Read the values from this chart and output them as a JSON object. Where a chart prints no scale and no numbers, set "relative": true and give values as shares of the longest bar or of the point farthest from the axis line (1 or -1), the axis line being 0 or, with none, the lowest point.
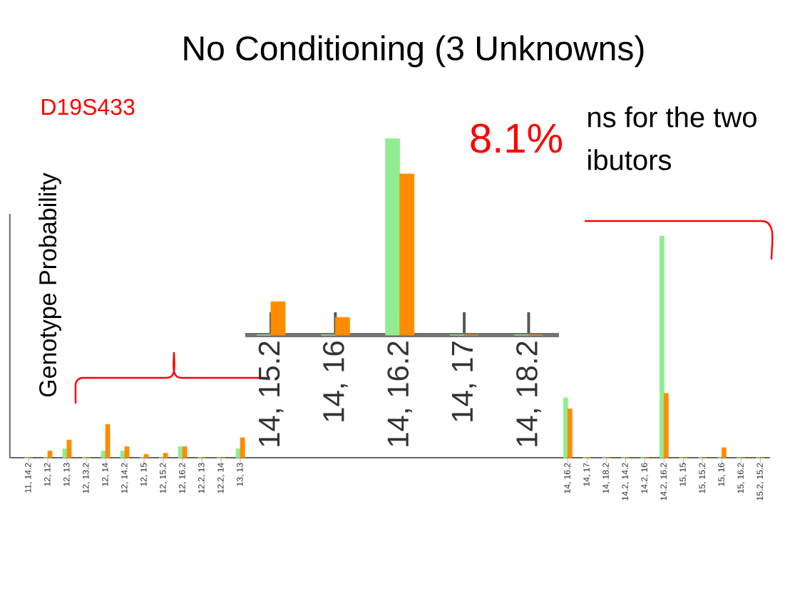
{
  "chart_data": [
    {
      "type": "bar",
      "title": "No Conditioning (3 Unknowns)",
      "ylabel": "Genotype Probability",
      "relative": true,
      "categories": [
        "11, 14.2",
        "12, 12",
        "12, 13",
        "12, 13.2",
        "12, 14",
        "12, 14.2",
        "12, 15",
        "12, 15.2",
        "12, 16.2",
        "12.2, 13",
        "12.2, 14",
        "13, 13",
        null,
        null,
        null,
        null,
        null,
        null,
        null,
        null,
        null,
        null,
        null,
        null,
        null,
        null,
        null,
        null,
        "14, 16.2",
        "14, 17",
        "14, 18.2",
        "14.2, 14.2",
        "14.2, 16",
        "14.2, 16.2",
        "15, 15",
        "15, 15.2",
        "15, 16",
        "15, 16.2",
        "15.2, 15.2"
      ],
      "series": [
        {
          "color": "#90ee90",
          "values": [
            0,
            0,
            0.04,
            0,
            0.03,
            0.03,
            0,
            0,
            0.05,
            0,
            0,
            0.04,
            null,
            null,
            null,
            null,
            null,
            null,
            null,
            null,
            null,
            null,
            null,
            null,
            null,
            null,
            null,
            null,
            0.27,
            0,
            0,
            0,
            0,
            1,
            0,
            0,
            0,
            0,
            0
          ]
        },
        {
          "color": "#ff8c00",
          "values": [
            0,
            0.03,
            0.08,
            0,
            0.15,
            0.05,
            0.015,
            0.02,
            0.05,
            0,
            0,
            0.09,
            null,
            null,
            null,
            null,
            null,
            null,
            null,
            null,
            null,
            null,
            null,
            null,
            null,
            null,
            null,
            null,
            0.22,
            0,
            0,
            0,
            0,
            0.29,
            0,
            0,
            0.045,
            0,
            0
          ]
        }
      ],
      "annotations": [
        "D19S433",
        "ns for the two",
        "ibutors"
      ]
    },
    {
      "type": "bar",
      "relative": true,
      "categories": [
        "14, 15.2",
        "14, 16",
        "14, 16.2",
        "14, 17",
        "14, 18.2"
      ],
      "series": [
        {
          "color": "#90ee90",
          "values": [
            0,
            0,
            1,
            0,
            0
          ]
        },
        {
          "color": "#ff8c00",
          "values": [
            0.17,
            0.09,
            0.82,
            0,
            0
          ]
        }
      ],
      "annotations": [
        "8.1%"
      ]
    }
  ]
}
